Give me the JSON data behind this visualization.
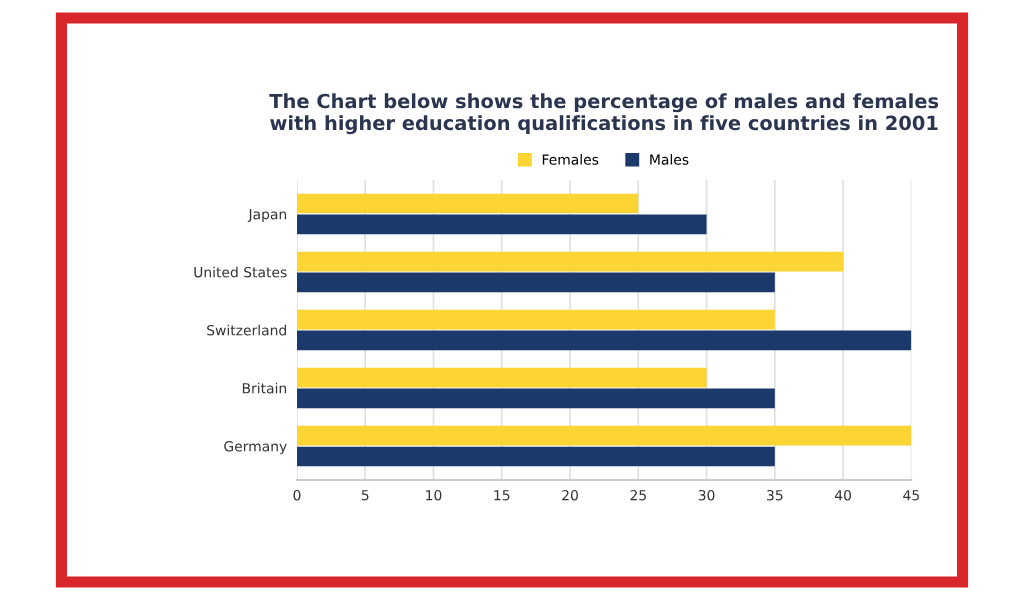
{
  "chart_data": {
    "type": "bar",
    "orientation": "horizontal",
    "title": "The Chart below shows the percentage of males and females\nwith higher education qualifications in five countries in 2001",
    "categories": [
      "Japan",
      "United States",
      "Switzerland",
      "Britain",
      "Germany"
    ],
    "series": [
      {
        "name": "Females",
        "color": "#fcd535",
        "values": [
          25,
          40,
          35,
          30,
          45
        ]
      },
      {
        "name": "Males",
        "color": "#1b3a6b",
        "values": [
          30,
          35,
          45,
          35,
          35
        ]
      }
    ],
    "xlim": [
      0,
      45
    ],
    "xticks": [
      0,
      5,
      10,
      15,
      20,
      25,
      30,
      35,
      40,
      45
    ],
    "grid": "x",
    "legend": "top"
  }
}
